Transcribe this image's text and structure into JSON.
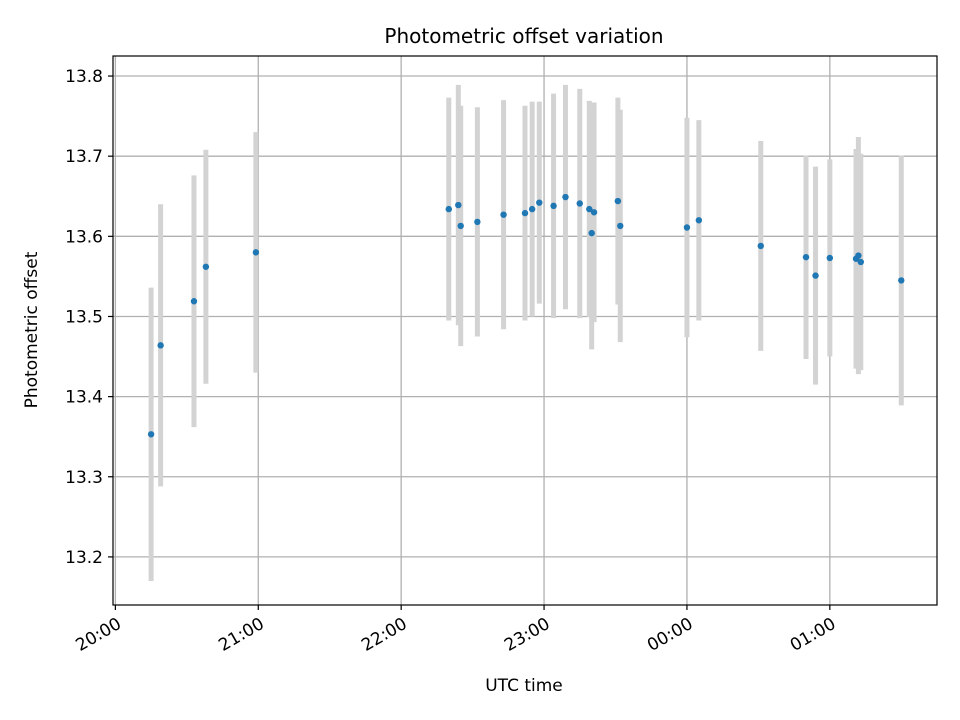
{
  "chart_data": {
    "type": "scatter",
    "title": "Photometric offset variation",
    "xlabel": "UTC time",
    "ylabel": "Photometric offset",
    "x_unit": "UTC time of night (hh:mm), values after 23:59 fall on the following day",
    "xlim": [
      "19:59",
      "01:45"
    ],
    "ylim": [
      13.14,
      13.825
    ],
    "grid": true,
    "legend": "none",
    "x_ticks": [
      "20:00",
      "21:00",
      "22:00",
      "23:00",
      "00:00",
      "01:00"
    ],
    "y_ticks": [
      13.2,
      13.3,
      13.4,
      13.5,
      13.6,
      13.7,
      13.8
    ],
    "y_tick_labels": [
      "13.2",
      "13.3",
      "13.4",
      "13.5",
      "13.6",
      "13.7",
      "13.8"
    ],
    "colors": {
      "points": "#1f77b4",
      "error_bars": "#d3d3d3",
      "grid": "#b0b0b0"
    },
    "points": [
      {
        "time": "20:15",
        "y": 13.353,
        "err": 0.183
      },
      {
        "time": "20:19",
        "y": 13.464,
        "err": 0.176
      },
      {
        "time": "20:33",
        "y": 13.519,
        "err": 0.157
      },
      {
        "time": "20:38",
        "y": 13.562,
        "err": 0.146
      },
      {
        "time": "20:59",
        "y": 13.58,
        "err": 0.15
      },
      {
        "time": "22:20",
        "y": 13.634,
        "err": 0.139
      },
      {
        "time": "22:24",
        "y": 13.639,
        "err": 0.15
      },
      {
        "time": "22:25",
        "y": 13.613,
        "err": 0.15
      },
      {
        "time": "22:32",
        "y": 13.618,
        "err": 0.143
      },
      {
        "time": "22:43",
        "y": 13.627,
        "err": 0.143
      },
      {
        "time": "22:52",
        "y": 13.629,
        "err": 0.134
      },
      {
        "time": "22:55",
        "y": 13.634,
        "err": 0.134
      },
      {
        "time": "22:58",
        "y": 13.642,
        "err": 0.126
      },
      {
        "time": "23:04",
        "y": 13.638,
        "err": 0.14
      },
      {
        "time": "23:09",
        "y": 13.649,
        "err": 0.14
      },
      {
        "time": "23:15",
        "y": 13.641,
        "err": 0.143
      },
      {
        "time": "23:19",
        "y": 13.634,
        "err": 0.135
      },
      {
        "time": "23:20",
        "y": 13.604,
        "err": 0.145
      },
      {
        "time": "23:21",
        "y": 13.63,
        "err": 0.137
      },
      {
        "time": "23:31",
        "y": 13.644,
        "err": 0.129
      },
      {
        "time": "23:32",
        "y": 13.613,
        "err": 0.145
      },
      {
        "time": "00:00",
        "y": 13.611,
        "err": 0.137
      },
      {
        "time": "00:05",
        "y": 13.62,
        "err": 0.125
      },
      {
        "time": "00:31",
        "y": 13.588,
        "err": 0.131
      },
      {
        "time": "00:50",
        "y": 13.574,
        "err": 0.127
      },
      {
        "time": "00:54",
        "y": 13.551,
        "err": 0.136
      },
      {
        "time": "01:00",
        "y": 13.573,
        "err": 0.123
      },
      {
        "time": "01:11",
        "y": 13.572,
        "err": 0.137
      },
      {
        "time": "01:12",
        "y": 13.576,
        "err": 0.148
      },
      {
        "time": "01:13",
        "y": 13.568,
        "err": 0.135
      },
      {
        "time": "01:30",
        "y": 13.545,
        "err": 0.156
      }
    ]
  }
}
